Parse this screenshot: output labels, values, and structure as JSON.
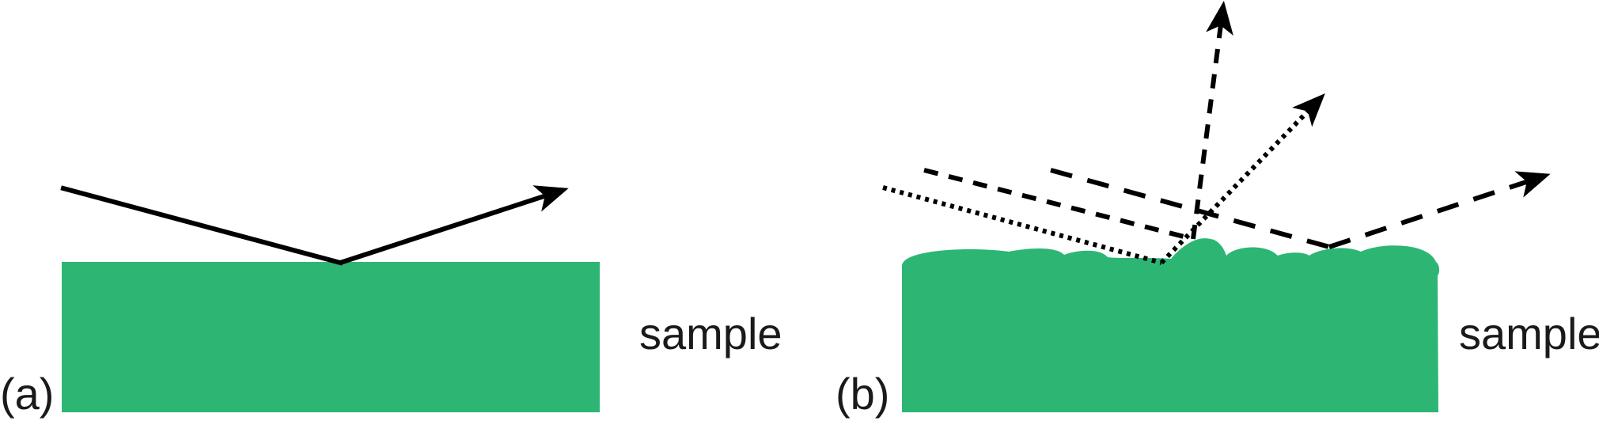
{
  "panels": [
    {
      "label": "(a)",
      "sample_label": "sample",
      "surface": "smooth",
      "reflection": "specular"
    },
    {
      "label": "(b)",
      "sample_label": "sample",
      "surface": "rough",
      "reflection": "diffuse"
    }
  ],
  "colors": {
    "sample": "#2db673",
    "rays": "#000000",
    "text": "#1a1a1a"
  }
}
